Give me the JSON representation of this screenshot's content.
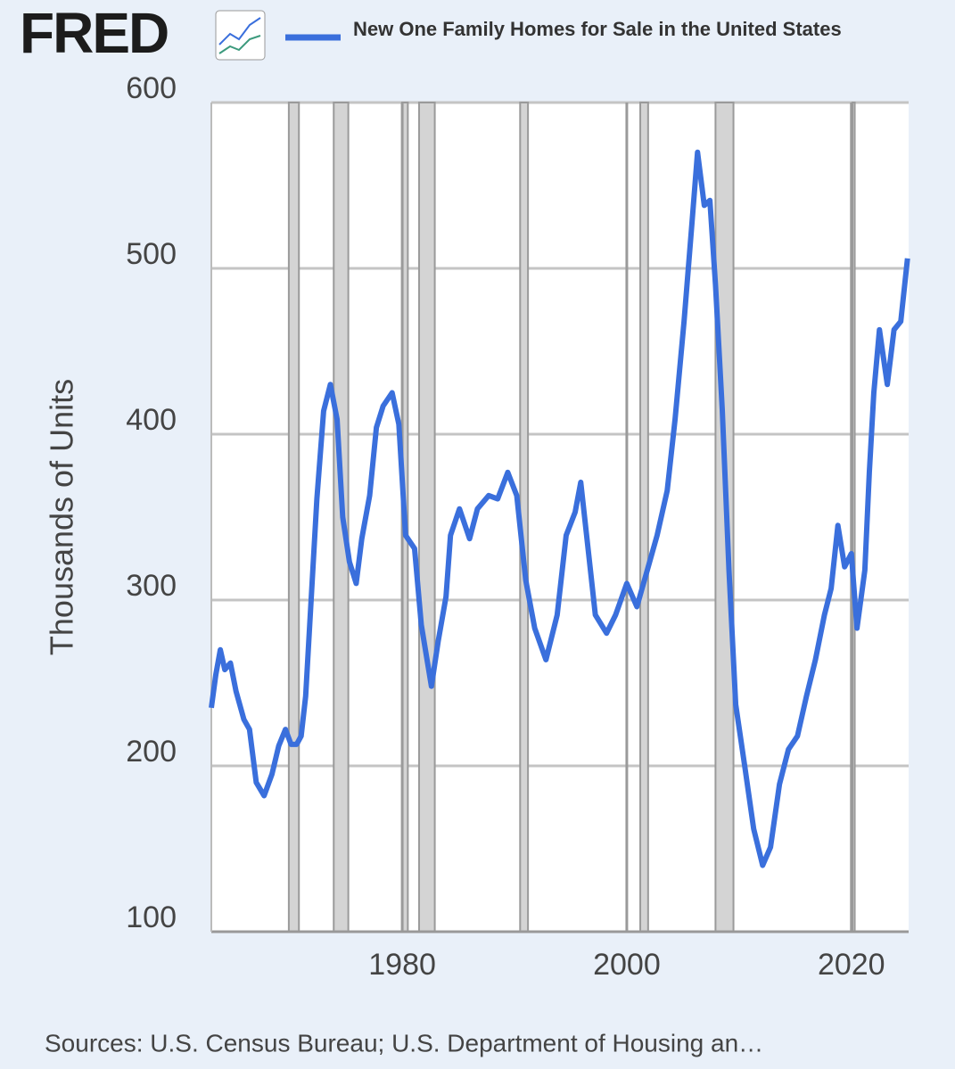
{
  "logo": "FRED",
  "chart_data": {
    "type": "line",
    "title": "New One Family Homes for Sale in the United States",
    "ylabel": "Thousands of Units",
    "source": "Sources: U.S. Census Bureau; U.S. Department of Housing an…",
    "series": [
      {
        "name": "New One Family Homes for Sale in the United States",
        "color": "#3a6fdc",
        "x": [
          1963.0,
          1963.4,
          1963.8,
          1964.2,
          1964.7,
          1965.2,
          1965.9,
          1966.4,
          1967.0,
          1967.7,
          1968.4,
          1969.0,
          1969.6,
          1970.1,
          1970.6,
          1971.0,
          1971.4,
          1972.4,
          1973.0,
          1973.6,
          1974.2,
          1974.7,
          1975.3,
          1975.9,
          1976.4,
          1977.1,
          1977.7,
          1978.3,
          1979.1,
          1979.7,
          1980.3,
          1981.1,
          1981.7,
          1982.6,
          1983.2,
          1983.9,
          1984.3,
          1985.1,
          1986.0,
          1986.7,
          1987.7,
          1988.5,
          1989.4,
          1990.2,
          1991.0,
          1991.8,
          1992.8,
          1993.8,
          1994.6,
          1995.4,
          1995.9,
          1996.6,
          1997.2,
          1998.2,
          1999.0,
          2000.0,
          2000.9,
          2001.7,
          2002.7,
          2003.6,
          2004.3,
          2005.1,
          2005.8,
          2006.3,
          2006.9,
          2007.4,
          2007.9,
          2008.5,
          2009.1,
          2009.7,
          2010.5,
          2011.3,
          2012.1,
          2012.8,
          2013.6,
          2014.4,
          2015.2,
          2016.0,
          2016.8,
          2017.6,
          2018.2,
          2018.8,
          2019.4,
          2020.0,
          2020.5,
          2021.2,
          2021.6,
          2022.0,
          2022.5,
          2023.2,
          2023.8,
          2024.4,
          2025.0
        ],
        "values": [
          235,
          255,
          270,
          258,
          262,
          245,
          228,
          222,
          190,
          182,
          195,
          212,
          222,
          213,
          213,
          218,
          242,
          361,
          414,
          430,
          409,
          350,
          323,
          310,
          337,
          363,
          404,
          417,
          425,
          406,
          339,
          331,
          285,
          248,
          275,
          302,
          339,
          355,
          337,
          355,
          363,
          361,
          377,
          363,
          312,
          283,
          264,
          291,
          339,
          353,
          371,
          328,
          291,
          280,
          291,
          310,
          296,
          315,
          339,
          366,
          409,
          468,
          527,
          570,
          538,
          541,
          490,
          415,
          318,
          237,
          200,
          162,
          140,
          151,
          189,
          210,
          218,
          242,
          264,
          291,
          307,
          345,
          320,
          328,
          283,
          318,
          377,
          425,
          463,
          430,
          463,
          468,
          506
        ]
      }
    ],
    "recessions": [
      [
        1969.9,
        1970.8
      ],
      [
        1973.9,
        1975.2
      ],
      [
        1980.0,
        1980.5
      ],
      [
        1981.5,
        1982.9
      ],
      [
        1990.5,
        1991.2
      ],
      [
        2001.2,
        2001.9
      ],
      [
        2007.9,
        2009.5
      ],
      [
        2020.1,
        2020.3
      ]
    ],
    "xlim": [
      1963,
      2025.1
    ],
    "ylim": [
      100,
      600
    ],
    "xticks": [
      1980,
      2000,
      2020
    ],
    "yticks": [
      100,
      200,
      300,
      400,
      500,
      600
    ],
    "grid": true
  }
}
